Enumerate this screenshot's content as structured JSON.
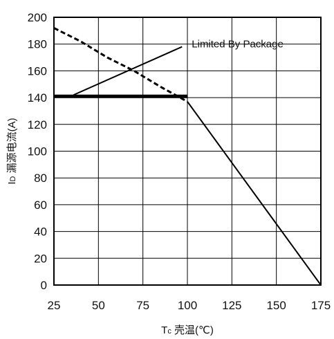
{
  "chart_data": {
    "type": "line",
    "title": "",
    "xlabel": {
      "main": "T",
      "sub": "c",
      "text": " 壳温(℃)"
    },
    "ylabel": {
      "main": "I",
      "sub": "D",
      "text": " 漏源电流(A)"
    },
    "xlim": [
      25,
      175
    ],
    "ylim": [
      0,
      200
    ],
    "xticks": [
      "25",
      "50",
      "75",
      "100",
      "125",
      "150",
      "175"
    ],
    "yticks": [
      "0",
      "20",
      "40",
      "60",
      "80",
      "100",
      "120",
      "140",
      "160",
      "180",
      "200"
    ],
    "grid": true,
    "series": [
      {
        "style": "dashed",
        "points": [
          [
            25,
            192
          ],
          [
            40,
            182
          ],
          [
            55,
            170
          ],
          [
            70,
            160
          ],
          [
            85,
            148
          ],
          [
            100,
            137
          ]
        ]
      },
      {
        "style": "thick-solid",
        "points": [
          [
            25,
            141
          ],
          [
            100,
            141
          ]
        ]
      },
      {
        "style": "solid",
        "points": [
          [
            100,
            137
          ],
          [
            175,
            0
          ]
        ]
      }
    ],
    "annotations": [
      {
        "text": "Limited By Package",
        "arrow_from": [
          97,
          178
        ],
        "arrow_to": [
          36,
          142
        ]
      }
    ]
  }
}
